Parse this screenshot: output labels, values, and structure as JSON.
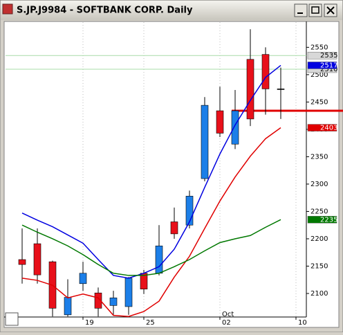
{
  "chart_data": {
    "type": "candlestick",
    "title": "S.JP.J9984 - SOFTBANK CORP. Daily",
    "categories": [
      null,
      null,
      null,
      null,
      "19",
      null,
      null,
      null,
      "25",
      null,
      null,
      null,
      null,
      "02",
      null,
      null,
      null,
      null,
      "10"
    ],
    "month_label": "Oct",
    "open": [
      2162,
      2191,
      2158,
      2061,
      2118,
      2101,
      2078,
      2076,
      2137,
      2137,
      2231,
      2225,
      2310,
      2434,
      2373,
      2528,
      2537,
      2474,
      null
    ],
    "high": [
      2219,
      2219,
      2160,
      2126,
      2158,
      2111,
      2105,
      2130,
      2143,
      2225,
      2257,
      2288,
      2459,
      2478,
      2472,
      2583,
      2550,
      2513,
      null
    ],
    "low": [
      2118,
      2118,
      2058,
      2058,
      2105,
      2058,
      2061,
      2061,
      2099,
      2133,
      2200,
      2219,
      2305,
      2386,
      2364,
      2406,
      2427,
      2419,
      null
    ],
    "close": [
      2153,
      2134,
      2073,
      2093,
      2137,
      2073,
      2092,
      2128,
      2108,
      2187,
      2209,
      2278,
      2444,
      2393,
      2434,
      2419,
      2474,
      2474,
      null
    ],
    "up_color": "#1c7fe8",
    "down_color": "#e8101a",
    "lines": [
      {
        "color": "#0000e0",
        "values": [
          2247,
          2234,
          2222,
          2207,
          2192,
          2162,
          2133,
          2128,
          2137,
          2149,
          2181,
          2231,
          2294,
          2355,
          2408,
          2453,
          2495,
          2517,
          null
        ]
      },
      {
        "color": "#e00000",
        "values": [
          2128,
          2124,
          2115,
          2092,
          2099,
          2092,
          2060,
          2058,
          2067,
          2086,
          2130,
          2168,
          2219,
          2269,
          2313,
          2351,
          2383,
          2403,
          null
        ]
      },
      {
        "color": "#007800",
        "values": [
          2225,
          2212,
          2200,
          2187,
          2171,
          2153,
          2137,
          2133,
          2133,
          2137,
          2149,
          2162,
          2178,
          2193,
          2200,
          2206,
          2221,
          2235,
          null
        ]
      }
    ],
    "hlines": [
      {
        "value": 2535,
        "color": "#a8dca8",
        "width": 1,
        "labeled": true
      },
      {
        "value": 2510,
        "color": "#a8dca8",
        "width": 1,
        "labeled": true
      },
      {
        "value": 2434,
        "color": "#e00000",
        "width": 3,
        "labeled": false
      }
    ],
    "ylim": [
      2057,
      2596
    ],
    "yticks": [
      2100,
      2150,
      2200,
      2250,
      2300,
      2350,
      2400,
      2450,
      2500,
      2550
    ],
    "grid": true
  }
}
